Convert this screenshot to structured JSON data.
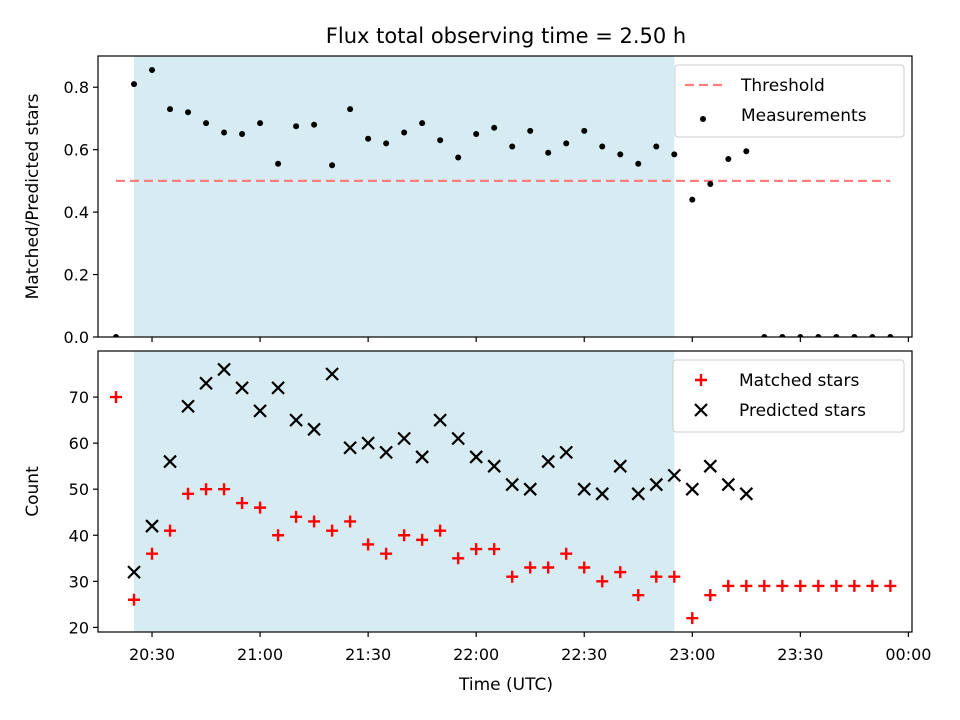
{
  "figure": {
    "title": "Flux total observing time = 2.50 h",
    "xlabel": "Time (UTC)"
  },
  "chart_data": [
    {
      "type": "scatter",
      "panel": "top",
      "ylabel": "Matched/Predicted stars",
      "xlim": [
        "20:15",
        "00:01"
      ],
      "ylim": [
        0,
        0.9
      ],
      "yticks": [
        "0.0",
        "0.2",
        "0.4",
        "0.6",
        "0.8"
      ],
      "grid": false,
      "legend_position": "top-right",
      "shaded_interval": {
        "start": "20:25",
        "end": "22:55",
        "color": "#add8e6"
      },
      "threshold": {
        "name": "Threshold",
        "value": 0.5,
        "x_start": "20:20",
        "x_end": "23:55",
        "color": "#ff7f7f",
        "style": "dashed"
      },
      "series": [
        {
          "name": "Measurements",
          "marker": "dot",
          "color": "#000000",
          "points": [
            [
              "20:20",
              0.0
            ],
            [
              "20:25",
              0.81
            ],
            [
              "20:30",
              0.855
            ],
            [
              "20:35",
              0.73
            ],
            [
              "20:40",
              0.72
            ],
            [
              "20:45",
              0.685
            ],
            [
              "20:50",
              0.655
            ],
            [
              "20:55",
              0.65
            ],
            [
              "21:00",
              0.685
            ],
            [
              "21:05",
              0.555
            ],
            [
              "21:10",
              0.675
            ],
            [
              "21:15",
              0.68
            ],
            [
              "21:20",
              0.55
            ],
            [
              "21:25",
              0.73
            ],
            [
              "21:30",
              0.635
            ],
            [
              "21:35",
              0.62
            ],
            [
              "21:40",
              0.655
            ],
            [
              "21:45",
              0.685
            ],
            [
              "21:50",
              0.63
            ],
            [
              "21:55",
              0.575
            ],
            [
              "22:00",
              0.65
            ],
            [
              "22:05",
              0.67
            ],
            [
              "22:10",
              0.61
            ],
            [
              "22:15",
              0.66
            ],
            [
              "22:20",
              0.59
            ],
            [
              "22:25",
              0.62
            ],
            [
              "22:30",
              0.66
            ],
            [
              "22:35",
              0.61
            ],
            [
              "22:40",
              0.585
            ],
            [
              "22:45",
              0.555
            ],
            [
              "22:50",
              0.61
            ],
            [
              "22:55",
              0.585
            ],
            [
              "23:00",
              0.44
            ],
            [
              "23:05",
              0.49
            ],
            [
              "23:10",
              0.57
            ],
            [
              "23:15",
              0.595
            ],
            [
              "23:20",
              0.0
            ],
            [
              "23:25",
              0.0
            ],
            [
              "23:30",
              0.0
            ],
            [
              "23:35",
              0.0
            ],
            [
              "23:40",
              0.0
            ],
            [
              "23:45",
              0.0
            ],
            [
              "23:50",
              0.0
            ],
            [
              "23:55",
              0.0
            ]
          ]
        }
      ]
    },
    {
      "type": "scatter",
      "panel": "bottom",
      "ylabel": "Count",
      "xlabel": "Time (UTC)",
      "xlim": [
        "20:15",
        "00:01"
      ],
      "ylim": [
        19,
        80
      ],
      "yticks": [
        "20",
        "30",
        "40",
        "50",
        "60",
        "70"
      ],
      "xticks": [
        "20:30",
        "21:00",
        "21:30",
        "22:00",
        "22:30",
        "23:00",
        "23:30",
        "00:00"
      ],
      "grid": false,
      "legend_position": "top-right",
      "shaded_interval": {
        "start": "20:25",
        "end": "22:55",
        "color": "#add8e6"
      },
      "series": [
        {
          "name": "Matched stars",
          "marker": "plus",
          "color": "#ff0000",
          "points": [
            [
              "20:20",
              70
            ],
            [
              "20:25",
              26
            ],
            [
              "20:30",
              36
            ],
            [
              "20:35",
              41
            ],
            [
              "20:40",
              49
            ],
            [
              "20:45",
              50
            ],
            [
              "20:50",
              50
            ],
            [
              "20:55",
              47
            ],
            [
              "21:00",
              46
            ],
            [
              "21:05",
              40
            ],
            [
              "21:10",
              44
            ],
            [
              "21:15",
              43
            ],
            [
              "21:20",
              41
            ],
            [
              "21:25",
              43
            ],
            [
              "21:30",
              38
            ],
            [
              "21:35",
              36
            ],
            [
              "21:40",
              40
            ],
            [
              "21:45",
              39
            ],
            [
              "21:50",
              41
            ],
            [
              "21:55",
              35
            ],
            [
              "22:00",
              37
            ],
            [
              "22:05",
              37
            ],
            [
              "22:10",
              31
            ],
            [
              "22:15",
              33
            ],
            [
              "22:20",
              33
            ],
            [
              "22:25",
              36
            ],
            [
              "22:30",
              33
            ],
            [
              "22:35",
              30
            ],
            [
              "22:40",
              32
            ],
            [
              "22:45",
              27
            ],
            [
              "22:50",
              31
            ],
            [
              "22:55",
              31
            ],
            [
              "23:00",
              22
            ],
            [
              "23:05",
              27
            ],
            [
              "23:10",
              29
            ],
            [
              "23:15",
              29
            ],
            [
              "23:20",
              29
            ],
            [
              "23:25",
              29
            ],
            [
              "23:30",
              29
            ],
            [
              "23:35",
              29
            ],
            [
              "23:40",
              29
            ],
            [
              "23:45",
              29
            ],
            [
              "23:50",
              29
            ],
            [
              "23:55",
              29
            ]
          ]
        },
        {
          "name": "Predicted stars",
          "marker": "x",
          "color": "#000000",
          "points": [
            [
              "20:25",
              32
            ],
            [
              "20:30",
              42
            ],
            [
              "20:35",
              56
            ],
            [
              "20:40",
              68
            ],
            [
              "20:45",
              73
            ],
            [
              "20:50",
              76
            ],
            [
              "20:55",
              72
            ],
            [
              "21:00",
              67
            ],
            [
              "21:05",
              72
            ],
            [
              "21:10",
              65
            ],
            [
              "21:15",
              63
            ],
            [
              "21:20",
              75
            ],
            [
              "21:25",
              59
            ],
            [
              "21:30",
              60
            ],
            [
              "21:35",
              58
            ],
            [
              "21:40",
              61
            ],
            [
              "21:45",
              57
            ],
            [
              "21:50",
              65
            ],
            [
              "21:55",
              61
            ],
            [
              "22:00",
              57
            ],
            [
              "22:05",
              55
            ],
            [
              "22:10",
              51
            ],
            [
              "22:15",
              50
            ],
            [
              "22:20",
              56
            ],
            [
              "22:25",
              58
            ],
            [
              "22:30",
              50
            ],
            [
              "22:35",
              49
            ],
            [
              "22:40",
              55
            ],
            [
              "22:45",
              49
            ],
            [
              "22:50",
              51
            ],
            [
              "22:55",
              53
            ],
            [
              "23:00",
              50
            ],
            [
              "23:05",
              55
            ],
            [
              "23:10",
              51
            ],
            [
              "23:15",
              49
            ]
          ]
        }
      ]
    }
  ]
}
